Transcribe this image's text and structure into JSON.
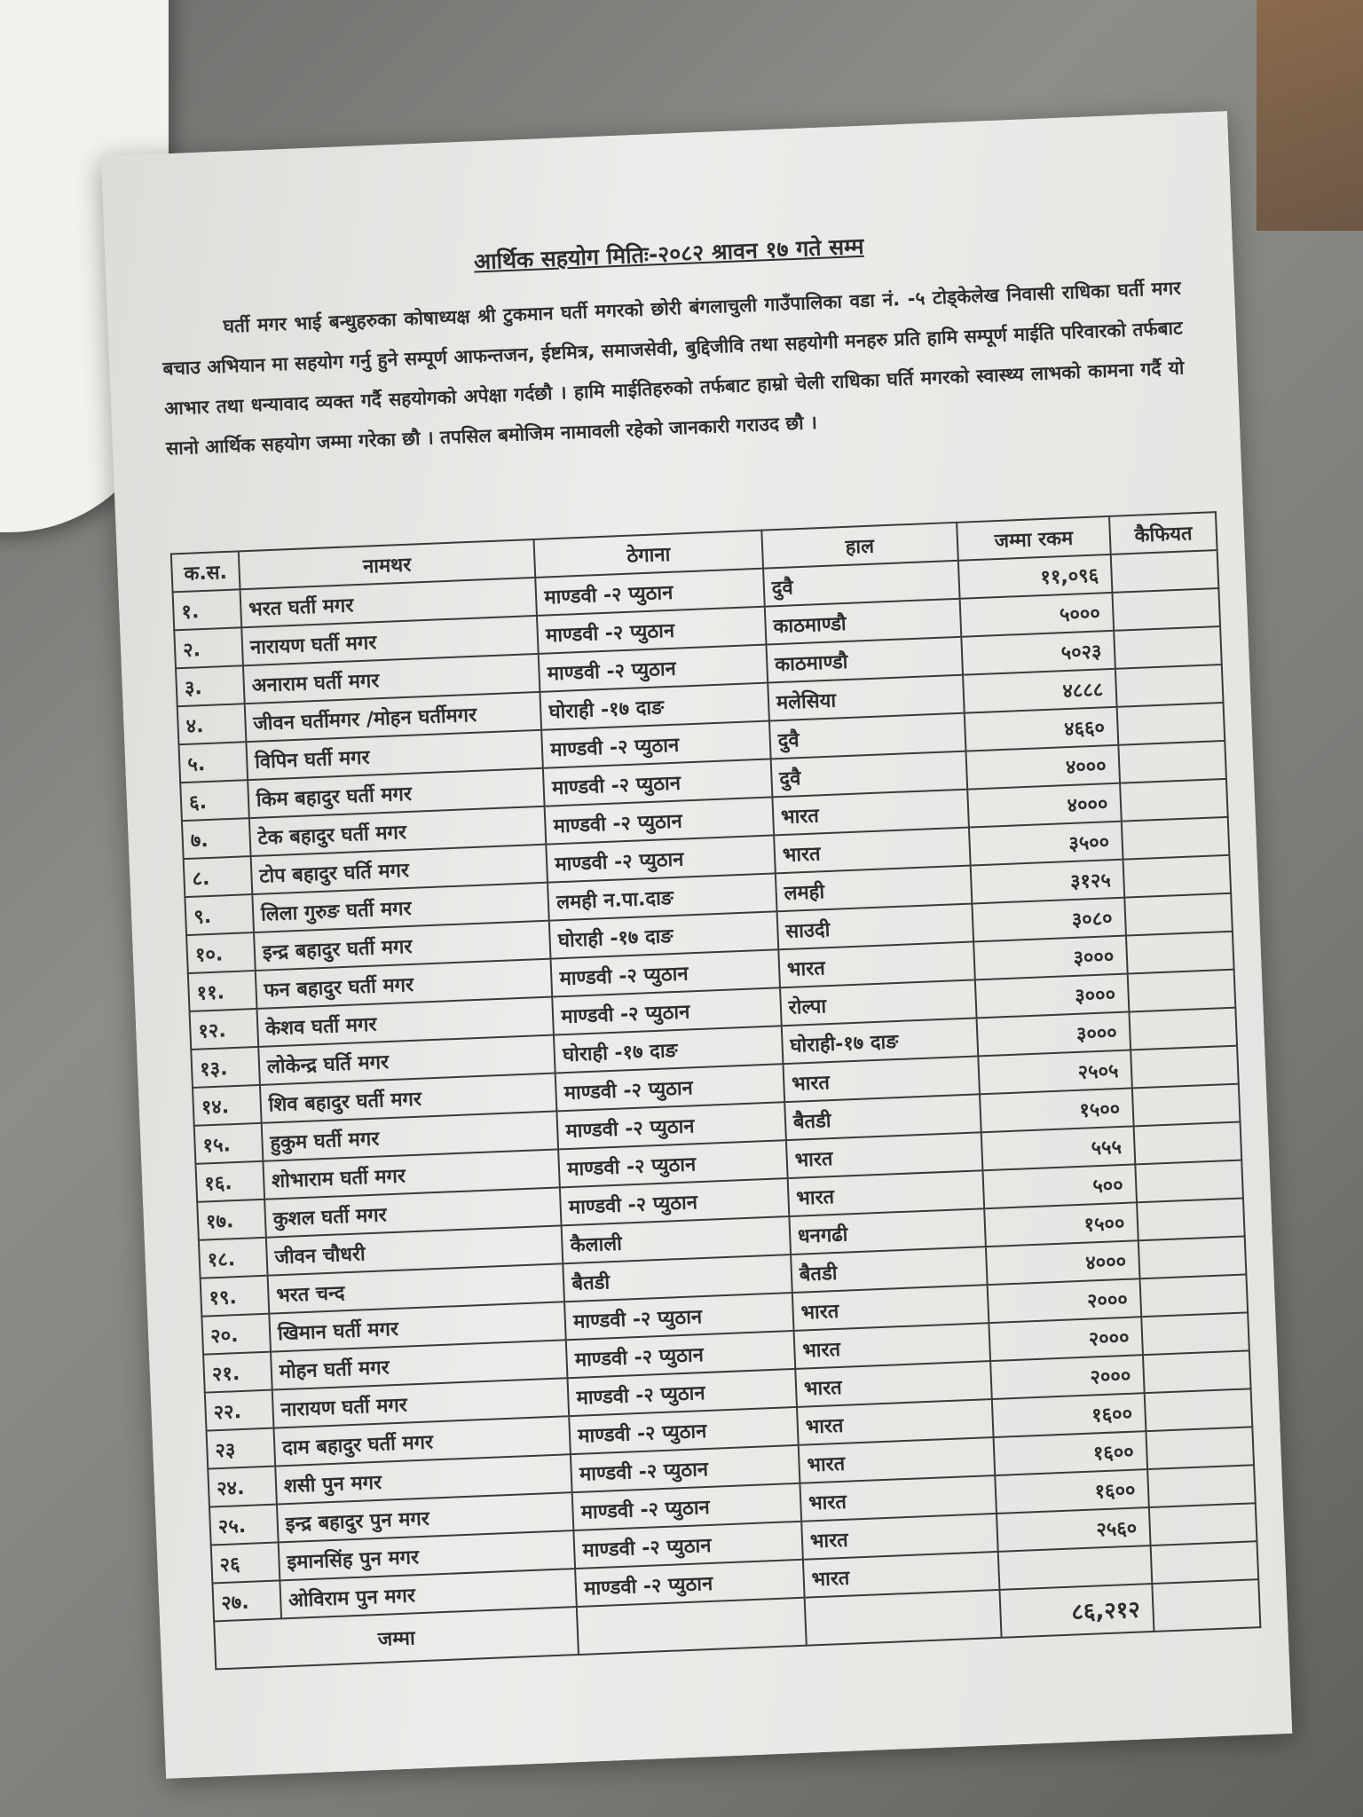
{
  "title": "आर्थिक सहयोग मितिः-२०८२ श्रावन १७ गते सम्म",
  "paragraph": "घर्ती मगर भाई बन्धुहरुका कोषाध्यक्ष श्री टुकमान घर्ती मगरको छोरी बंगलाचुली गाउँपालिका वडा नं. -५ टोड्केलेख निवासी राधिका घर्ती मगर बचाउ अभियान मा सहयोग गर्नु हुने सम्पूर्ण आफन्तजन, ईष्टमित्र, समाजसेवी, बुद्दिजीवि तथा सहयोगी मनहरु प्रति हामि सम्पूर्ण माईति परिवारको तर्फबाट आभार तथा धन्यावाद व्यक्त गर्दै सहयोगको अपेक्षा गर्दछौ । हामि माईतिहरुको तर्फबाट हाम्रो चेली राधिका घर्ति मगरको स्वास्थ्य लाभको कामना गर्दै यो सानो आर्थिक सहयोग जम्मा गरेका छौ । तपसिल बमोजिम नामावली रहेको जानकारी गराउद छौ ।",
  "table": {
    "headers": [
      "क.स.",
      "नामथर",
      "ठेगाना",
      "हाल",
      "जम्मा रकम",
      "कैफियत"
    ],
    "rows": [
      {
        "sn": "१.",
        "name": "भरत घर्ती मगर",
        "address": "माण्डवी -२ प्युठान",
        "current": "दुवै",
        "amount": "११,०९६"
      },
      {
        "sn": "२.",
        "name": "नारायण घर्ती मगर",
        "address": "माण्डवी -२ प्युठान",
        "current": "काठमाण्डौ",
        "amount": "५०००"
      },
      {
        "sn": "३.",
        "name": "अनाराम घर्ती मगर",
        "address": "माण्डवी -२ प्युठान",
        "current": "काठमाण्डौ",
        "amount": "५०२३"
      },
      {
        "sn": "४.",
        "name": "जीवन घर्तीमगर /मोहन घर्तीमगर",
        "address": "घोराही -१७ दाङ",
        "current": "मलेसिया",
        "amount": "४८८८"
      },
      {
        "sn": "५.",
        "name": "विपिन घर्ती मगर",
        "address": "माण्डवी -२ प्युठान",
        "current": "दुवै",
        "amount": "४६६०"
      },
      {
        "sn": "६.",
        "name": "किम बहादुर घर्ती मगर",
        "address": "माण्डवी -२ प्युठान",
        "current": "दुवै",
        "amount": "४०००"
      },
      {
        "sn": "७.",
        "name": "टेक बहादुर घर्ती मगर",
        "address": "माण्डवी -२ प्युठान",
        "current": "भारत",
        "amount": "४०००"
      },
      {
        "sn": "८.",
        "name": "टोप बहादुर घर्ति मगर",
        "address": "माण्डवी -२ प्युठान",
        "current": "भारत",
        "amount": "३५००"
      },
      {
        "sn": "९.",
        "name": "लिला गुरुङ घर्ती मगर",
        "address": "लमही न.पा.दाङ",
        "current": "लमही",
        "amount": "३१२५"
      },
      {
        "sn": "१०.",
        "name": "इन्द्र बहादुर घर्ती मगर",
        "address": "घोराही -१७ दाङ",
        "current": "साउदी",
        "amount": "३०८०"
      },
      {
        "sn": "११.",
        "name": "फन बहादुर घर्ती मगर",
        "address": "माण्डवी -२ प्युठान",
        "current": "भारत",
        "amount": "३०००"
      },
      {
        "sn": "१२.",
        "name": "केशव घर्ती मगर",
        "address": "माण्डवी -२ प्युठान",
        "current": "रोल्पा",
        "amount": "३०००"
      },
      {
        "sn": "१३.",
        "name": "लोकेन्द्र घर्ति मगर",
        "address": "घोराही -१७ दाङ",
        "current": "घोराही-१७ दाङ",
        "amount": "३०००"
      },
      {
        "sn": "१४.",
        "name": "शिव बहादुर घर्ती मगर",
        "address": "माण्डवी -२ प्युठान",
        "current": "भारत",
        "amount": "२५०५"
      },
      {
        "sn": "१५.",
        "name": "हुकुम घर्ती मगर",
        "address": "माण्डवी -२ प्युठान",
        "current": "बैतडी",
        "amount": "१५००"
      },
      {
        "sn": "१६.",
        "name": "शोभाराम घर्ती मगर",
        "address": "माण्डवी -२ प्युठान",
        "current": "भारत",
        "amount": "५५५"
      },
      {
        "sn": "१७.",
        "name": "कुशल घर्ती मगर",
        "address": "माण्डवी -२ प्युठान",
        "current": "भारत",
        "amount": "५००"
      },
      {
        "sn": "१८.",
        "name": "जीवन चौधरी",
        "address": "कैलाली",
        "current": "धनगढी",
        "amount": "१५००"
      },
      {
        "sn": "१९.",
        "name": "भरत चन्द",
        "address": "बैतडी",
        "current": "बैतडी",
        "amount": "४०००"
      },
      {
        "sn": "२०.",
        "name": "खिमान घर्ती मगर",
        "address": "माण्डवी -२ प्युठान",
        "current": "भारत",
        "amount": "२०००"
      },
      {
        "sn": "२१.",
        "name": "मोहन घर्ती मगर",
        "address": "माण्डवी -२ प्युठान",
        "current": "भारत",
        "amount": "२०००"
      },
      {
        "sn": "२२.",
        "name": "नारायण घर्ती मगर",
        "address": "माण्डवी -२ प्युठान",
        "current": "भारत",
        "amount": "२०००"
      },
      {
        "sn": "२३",
        "name": "दाम बहादुर घर्ती मगर",
        "address": "माण्डवी -२ प्युठान",
        "current": "भारत",
        "amount": "१६००"
      },
      {
        "sn": "२४.",
        "name": "शसी पुन मगर",
        "address": "माण्डवी -२ प्युठान",
        "current": "भारत",
        "amount": "१६००"
      },
      {
        "sn": "२५.",
        "name": "इन्द्र बहादुर पुन मगर",
        "address": "माण्डवी -२ प्युठान",
        "current": "भारत",
        "amount": "१६००"
      },
      {
        "sn": "२६",
        "name": "इमानसिंह पुन मगर",
        "address": "माण्डवी -२ प्युठान",
        "current": "भारत",
        "amount": "२५६०"
      },
      {
        "sn": "२७.",
        "name": "ओविराम पुन मगर",
        "address": "माण्डवी -२ प्युठान",
        "current": "भारत",
        "amount": ""
      }
    ],
    "total_label": "जम्मा",
    "total_amount": "८६,२१२"
  }
}
